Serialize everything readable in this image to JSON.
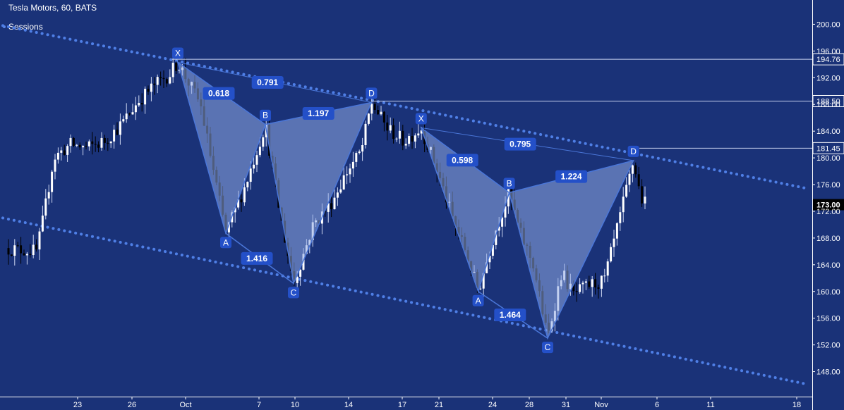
{
  "header": {
    "title": "Tesla Motors, 60, BATS",
    "indicator": "Sessions"
  },
  "colors": {
    "background": "#1a3278",
    "axis_text": "#ffffff",
    "pattern_fill": "#8fa9e3",
    "pattern_line": "#4a76d8",
    "trendline": "#4f7fe6",
    "label_bg": "#2450c8",
    "candle_up": "#ffffff",
    "candle_down": "#000000",
    "level_line": "#c8d2ef"
  },
  "chart_data": {
    "type": "candlestick",
    "title": "Tesla Motors, 60, BATS",
    "ylim": [
      145,
      203
    ],
    "y_ticks": [
      "148.00",
      "152.00",
      "156.00",
      "160.00",
      "164.00",
      "168.00",
      "172.00",
      "176.00",
      "180.00",
      "184.00",
      "188.00",
      "192.00",
      "196.00",
      "200.00"
    ],
    "x_ticks": [
      "23",
      "26",
      "Oct",
      "7",
      "10",
      "14",
      "17",
      "21",
      "24",
      "28",
      "31",
      "Nov",
      "6",
      "11",
      "18"
    ],
    "price_labels": [
      {
        "text": "194.76",
        "value": 194.76,
        "style": "level"
      },
      {
        "text": "188.50",
        "value": 188.5,
        "style": "level"
      },
      {
        "text": "181.45",
        "value": 181.45,
        "style": "level"
      },
      {
        "text": "173.00",
        "value": 173.0,
        "style": "last"
      }
    ],
    "patterns": [
      {
        "points": [
          {
            "label": "X",
            "pos": 0.31,
            "value": 194.3
          },
          {
            "label": "A",
            "pos": 0.395,
            "value": 168.7
          },
          {
            "label": "B",
            "pos": 0.465,
            "value": 185.0
          },
          {
            "label": "C",
            "pos": 0.515,
            "value": 161.2
          },
          {
            "label": "D",
            "pos": 0.653,
            "value": 188.3
          }
        ],
        "ratios": {
          "XB": "0.618",
          "AC": "1.416",
          "BD": "1.197",
          "XD": "0.791"
        }
      },
      {
        "points": [
          {
            "label": "X",
            "pos": 0.741,
            "value": 184.5
          },
          {
            "label": "A",
            "pos": 0.842,
            "value": 160.0
          },
          {
            "label": "B",
            "pos": 0.897,
            "value": 174.8
          },
          {
            "label": "C",
            "pos": 0.965,
            "value": 153.0
          },
          {
            "label": "D",
            "pos": 1.117,
            "value": 179.6
          }
        ],
        "ratios": {
          "XB": "0.598",
          "AC": "1.464",
          "BD": "1.224",
          "XD": "0.795"
        }
      }
    ],
    "trendlines": [
      {
        "from": {
          "pos": 0.0,
          "value": 199.8
        },
        "to": {
          "pos": 1.42,
          "value": 175.5
        }
      },
      {
        "from": {
          "pos": 0.0,
          "value": 171.0
        },
        "to": {
          "pos": 1.42,
          "value": 146.2
        }
      }
    ],
    "price_path": [
      {
        "pos": 0.0,
        "value": 166.5
      },
      {
        "pos": 0.06,
        "value": 166.0
      },
      {
        "pos": 0.072,
        "value": 171.0
      },
      {
        "pos": 0.09,
        "value": 180.0
      },
      {
        "pos": 0.12,
        "value": 182.0
      },
      {
        "pos": 0.15,
        "value": 181.5
      },
      {
        "pos": 0.18,
        "value": 182.5
      },
      {
        "pos": 0.21,
        "value": 185.0
      },
      {
        "pos": 0.24,
        "value": 188.5
      },
      {
        "pos": 0.27,
        "value": 191.0
      },
      {
        "pos": 0.295,
        "value": 192.5
      },
      {
        "pos": 0.31,
        "value": 194.3
      },
      {
        "pos": 0.35,
        "value": 188.0
      },
      {
        "pos": 0.395,
        "value": 168.7
      },
      {
        "pos": 0.43,
        "value": 176.0
      },
      {
        "pos": 0.465,
        "value": 185.0
      },
      {
        "pos": 0.49,
        "value": 172.0
      },
      {
        "pos": 0.515,
        "value": 161.2
      },
      {
        "pos": 0.55,
        "value": 170.0
      },
      {
        "pos": 0.58,
        "value": 173.0
      },
      {
        "pos": 0.61,
        "value": 178.0
      },
      {
        "pos": 0.635,
        "value": 181.0
      },
      {
        "pos": 0.653,
        "value": 188.3
      },
      {
        "pos": 0.68,
        "value": 184.5
      },
      {
        "pos": 0.71,
        "value": 182.5
      },
      {
        "pos": 0.741,
        "value": 184.5
      },
      {
        "pos": 0.77,
        "value": 178.0
      },
      {
        "pos": 0.8,
        "value": 170.0
      },
      {
        "pos": 0.82,
        "value": 166.0
      },
      {
        "pos": 0.842,
        "value": 160.0
      },
      {
        "pos": 0.87,
        "value": 168.5
      },
      {
        "pos": 0.897,
        "value": 174.8
      },
      {
        "pos": 0.915,
        "value": 169.0
      },
      {
        "pos": 0.94,
        "value": 164.0
      },
      {
        "pos": 0.965,
        "value": 153.0
      },
      {
        "pos": 0.99,
        "value": 163.0
      },
      {
        "pos": 1.01,
        "value": 159.5
      },
      {
        "pos": 1.04,
        "value": 161.0
      },
      {
        "pos": 1.065,
        "value": 161.5
      },
      {
        "pos": 1.09,
        "value": 170.0
      },
      {
        "pos": 1.117,
        "value": 179.6
      },
      {
        "pos": 1.13,
        "value": 174.0
      },
      {
        "pos": 1.14,
        "value": 173.0
      }
    ]
  }
}
